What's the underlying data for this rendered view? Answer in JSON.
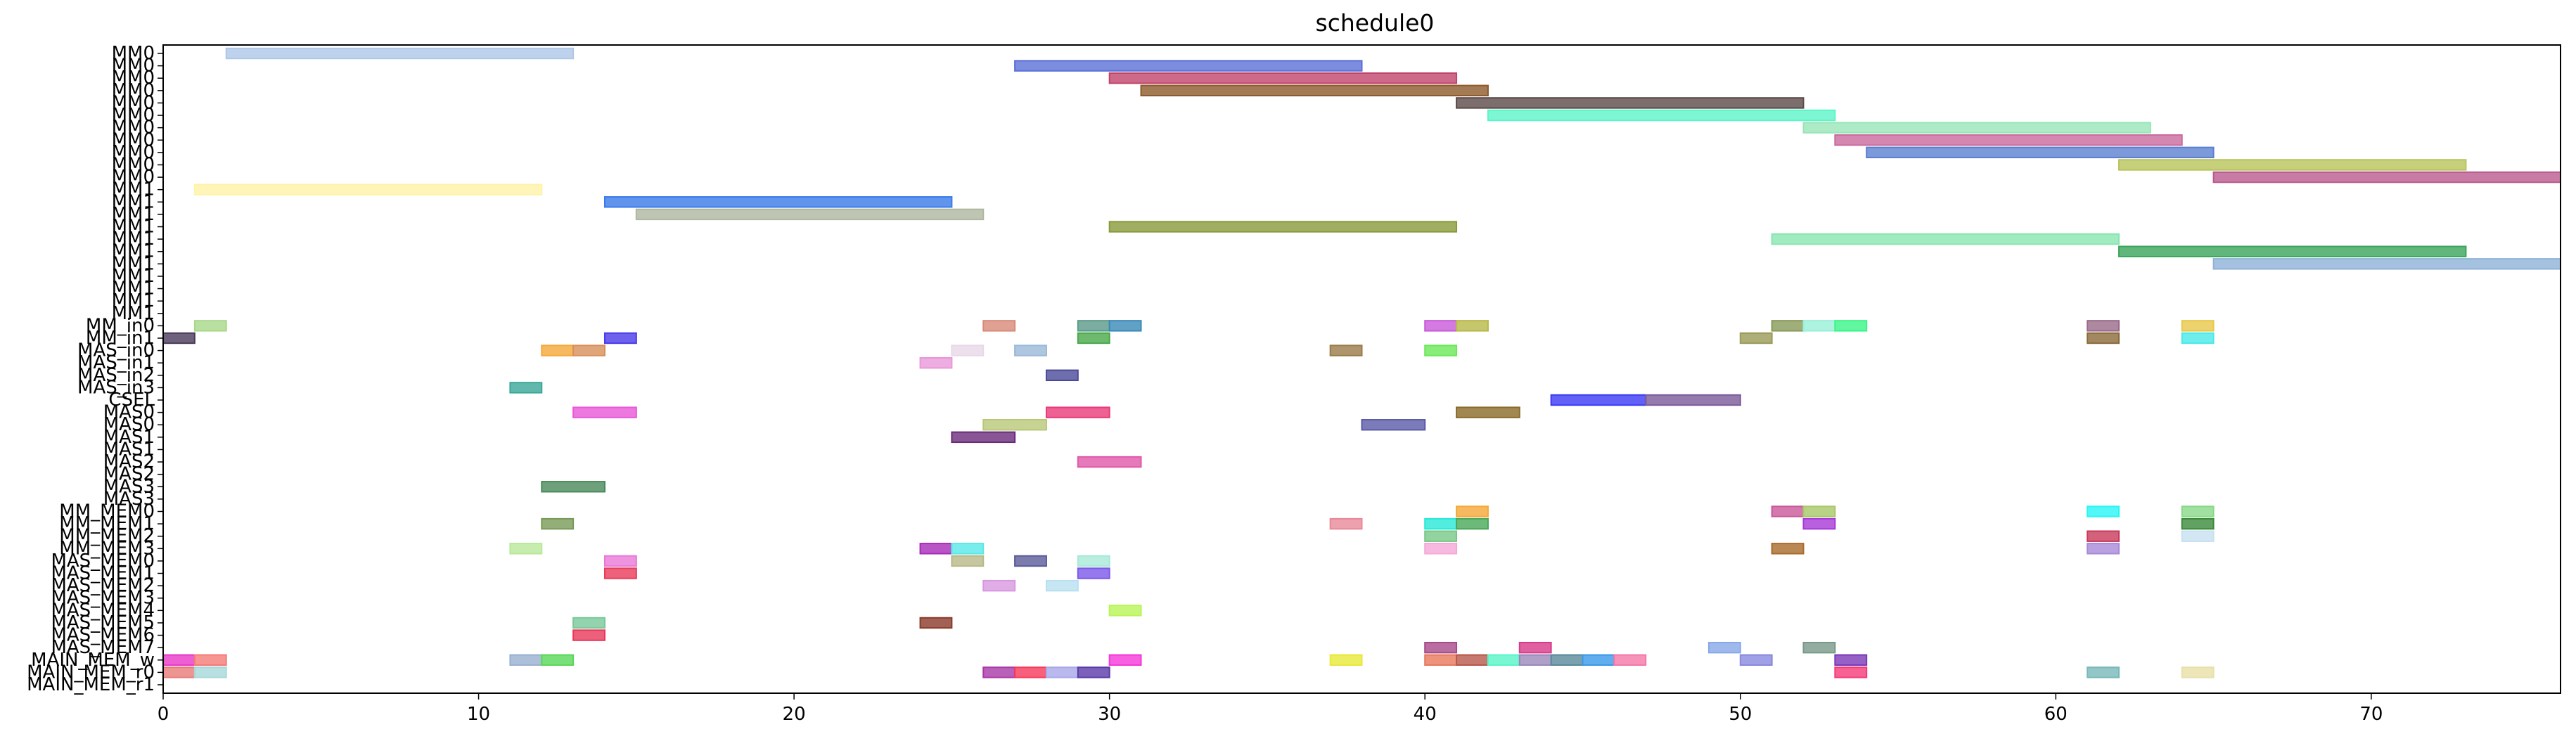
{
  "chart_data": {
    "type": "gantt",
    "title": "schedule0",
    "xlabel": "",
    "ylabel": "",
    "xlim": [
      0,
      76
    ],
    "xticks": [
      0,
      10,
      20,
      30,
      40,
      50,
      60,
      70
    ],
    "grid": false,
    "rows": [
      "MM0",
      "MM0",
      "MM0",
      "MM0",
      "MM0",
      "MM0",
      "MM0",
      "MM0",
      "MM0",
      "MM0",
      "MM0",
      "MM1",
      "MM1",
      "MM1",
      "MM1",
      "MM1",
      "MM1",
      "MM1",
      "MM1",
      "MM1",
      "MM1",
      "MM1",
      "MM_in0",
      "MM_in1",
      "MAS_in0",
      "MAS_in1",
      "MAS_in2",
      "MAS_in3",
      "CSEL",
      "MAS0",
      "MAS0",
      "MAS1",
      "MAS1",
      "MAS2",
      "MAS2",
      "MAS3",
      "MAS3",
      "MM_MEM0",
      "MM_MEM1",
      "MM_MEM2",
      "MM_MEM3",
      "MAS_MEM0",
      "MAS_MEM1",
      "MAS_MEM2",
      "MAS_MEM3",
      "MAS_MEM4",
      "MAS_MEM5",
      "MAS_MEM6",
      "MAS_MEM7",
      "MAIN_MEM_w",
      "MAIN_MEM_r0",
      "MAIN_MEM_r1"
    ],
    "tasks": [
      {
        "row": 0,
        "start": 2,
        "end": 13,
        "color": "#aec7e8"
      },
      {
        "row": 1,
        "start": 27,
        "end": 38,
        "color": "#5b6fd6"
      },
      {
        "row": 2,
        "start": 30,
        "end": 41,
        "color": "#c0436b"
      },
      {
        "row": 3,
        "start": 31,
        "end": 42,
        "color": "#8c5a2b"
      },
      {
        "row": 4,
        "start": 41,
        "end": 52,
        "color": "#5a4a48"
      },
      {
        "row": 5,
        "start": 42,
        "end": 53,
        "color": "#5cf5c8"
      },
      {
        "row": 6,
        "start": 52,
        "end": 63,
        "color": "#98e6b8"
      },
      {
        "row": 7,
        "start": 53,
        "end": 64,
        "color": "#c96a9d"
      },
      {
        "row": 8,
        "start": 54,
        "end": 65,
        "color": "#5b7fd0"
      },
      {
        "row": 9,
        "start": 62,
        "end": 73,
        "color": "#b8c45a"
      },
      {
        "row": 10,
        "start": 65,
        "end": 76,
        "color": "#b95a8e"
      },
      {
        "row": 11,
        "start": 1,
        "end": 12,
        "color": "#fff3a8"
      },
      {
        "row": 12,
        "start": 14,
        "end": 25,
        "color": "#3a7ae8"
      },
      {
        "row": 13,
        "start": 15,
        "end": 26,
        "color": "#aeb8a0"
      },
      {
        "row": 14,
        "start": 30,
        "end": 41,
        "color": "#889a3a"
      },
      {
        "row": 15,
        "start": 51,
        "end": 62,
        "color": "#88e6b0"
      },
      {
        "row": 16,
        "start": 62,
        "end": 73,
        "color": "#3aa55a"
      },
      {
        "row": 17,
        "start": 65,
        "end": 76,
        "color": "#8fb2d8"
      },
      {
        "row": 22,
        "start": 1,
        "end": 2,
        "color": "#a8d888"
      },
      {
        "row": 22,
        "start": 26,
        "end": 27,
        "color": "#d88a78"
      },
      {
        "row": 22,
        "start": 29,
        "end": 30,
        "color": "#5a9a88"
      },
      {
        "row": 22,
        "start": 30,
        "end": 31,
        "color": "#3a8ab8"
      },
      {
        "row": 22,
        "start": 40,
        "end": 41,
        "color": "#c85ad8"
      },
      {
        "row": 22,
        "start": 41,
        "end": 42,
        "color": "#b8b848"
      },
      {
        "row": 22,
        "start": 51,
        "end": 52,
        "color": "#889a58"
      },
      {
        "row": 22,
        "start": 52,
        "end": 53,
        "color": "#98f0d8"
      },
      {
        "row": 22,
        "start": 53,
        "end": 54,
        "color": "#3af588"
      },
      {
        "row": 22,
        "start": 61,
        "end": 62,
        "color": "#9a6a88"
      },
      {
        "row": 22,
        "start": 64,
        "end": 65,
        "color": "#e8c848"
      },
      {
        "row": 23,
        "start": 0,
        "end": 1,
        "color": "#4a3a5a"
      },
      {
        "row": 23,
        "start": 14,
        "end": 15,
        "color": "#4a3ae8"
      },
      {
        "row": 23,
        "start": 29,
        "end": 30,
        "color": "#48a848"
      },
      {
        "row": 23,
        "start": 50,
        "end": 51,
        "color": "#9a9a58"
      },
      {
        "row": 23,
        "start": 61,
        "end": 62,
        "color": "#8a6a3a"
      },
      {
        "row": 23,
        "start": 64,
        "end": 65,
        "color": "#4ae8e8"
      },
      {
        "row": 24,
        "start": 12,
        "end": 13,
        "color": "#f5a838"
      },
      {
        "row": 24,
        "start": 13,
        "end": 14,
        "color": "#d8905a"
      },
      {
        "row": 24,
        "start": 25,
        "end": 26,
        "color": "#e8d8e8"
      },
      {
        "row": 24,
        "start": 27,
        "end": 28,
        "color": "#9ab8d8"
      },
      {
        "row": 24,
        "start": 37,
        "end": 38,
        "color": "#9a7a48"
      },
      {
        "row": 24,
        "start": 40,
        "end": 41,
        "color": "#6ae858"
      },
      {
        "row": 25,
        "start": 24,
        "end": 25,
        "color": "#e898d8"
      },
      {
        "row": 26,
        "start": 28,
        "end": 29,
        "color": "#4a4a9a"
      },
      {
        "row": 27,
        "start": 11,
        "end": 12,
        "color": "#3aa898"
      },
      {
        "row": 28,
        "start": 44,
        "end": 47,
        "color": "#3a3af5"
      },
      {
        "row": 28,
        "start": 47,
        "end": 50,
        "color": "#7a5a98"
      },
      {
        "row": 29,
        "start": 13,
        "end": 15,
        "color": "#e858d8"
      },
      {
        "row": 29,
        "start": 28,
        "end": 30,
        "color": "#e83a78"
      },
      {
        "row": 29,
        "start": 41,
        "end": 43,
        "color": "#8a6a28"
      },
      {
        "row": 30,
        "start": 26,
        "end": 28,
        "color": "#b8c878"
      },
      {
        "row": 30,
        "start": 38,
        "end": 40,
        "color": "#5a5aa8"
      },
      {
        "row": 31,
        "start": 25,
        "end": 27,
        "color": "#6a2a7a"
      },
      {
        "row": 33,
        "start": 29,
        "end": 31,
        "color": "#e058a8"
      },
      {
        "row": 35,
        "start": 12,
        "end": 14,
        "color": "#4a8a5a"
      },
      {
        "row": 37,
        "start": 41,
        "end": 42,
        "color": "#f5a838"
      },
      {
        "row": 37,
        "start": 51,
        "end": 52,
        "color": "#c8589a"
      },
      {
        "row": 37,
        "start": 52,
        "end": 53,
        "color": "#a8c868"
      },
      {
        "row": 37,
        "start": 61,
        "end": 62,
        "color": "#28f5f5"
      },
      {
        "row": 37,
        "start": 64,
        "end": 65,
        "color": "#88d888"
      },
      {
        "row": 38,
        "start": 12,
        "end": 13,
        "color": "#789a58"
      },
      {
        "row": 38,
        "start": 37,
        "end": 38,
        "color": "#e88898"
      },
      {
        "row": 38,
        "start": 40,
        "end": 41,
        "color": "#28e8d8"
      },
      {
        "row": 38,
        "start": 41,
        "end": 42,
        "color": "#48a858"
      },
      {
        "row": 38,
        "start": 52,
        "end": 53,
        "color": "#a838d8"
      },
      {
        "row": 38,
        "start": 64,
        "end": 65,
        "color": "#3a8a3a"
      },
      {
        "row": 39,
        "start": 40,
        "end": 41,
        "color": "#78c888"
      },
      {
        "row": 39,
        "start": 61,
        "end": 62,
        "color": "#c83a5a"
      },
      {
        "row": 39,
        "start": 64,
        "end": 65,
        "color": "#c8e0f0"
      },
      {
        "row": 40,
        "start": 11,
        "end": 12,
        "color": "#b8e898"
      },
      {
        "row": 40,
        "start": 24,
        "end": 25,
        "color": "#a82ab8"
      },
      {
        "row": 40,
        "start": 25,
        "end": 26,
        "color": "#58e8e8"
      },
      {
        "row": 40,
        "start": 40,
        "end": 41,
        "color": "#f5a8d8"
      },
      {
        "row": 40,
        "start": 51,
        "end": 52,
        "color": "#a86a2a"
      },
      {
        "row": 40,
        "start": 61,
        "end": 62,
        "color": "#a888d8"
      },
      {
        "row": 41,
        "start": 14,
        "end": 15,
        "color": "#e878d8"
      },
      {
        "row": 41,
        "start": 25,
        "end": 26,
        "color": "#b8b888"
      },
      {
        "row": 41,
        "start": 27,
        "end": 28,
        "color": "#5a5a9a"
      },
      {
        "row": 41,
        "start": 29,
        "end": 30,
        "color": "#a8e8d8"
      },
      {
        "row": 42,
        "start": 14,
        "end": 15,
        "color": "#e83a5a"
      },
      {
        "row": 42,
        "start": 29,
        "end": 30,
        "color": "#7a58e8"
      },
      {
        "row": 43,
        "start": 26,
        "end": 27,
        "color": "#d898e0"
      },
      {
        "row": 43,
        "start": 28,
        "end": 29,
        "color": "#b8e0f0"
      },
      {
        "row": 45,
        "start": 30,
        "end": 31,
        "color": "#b8f558"
      },
      {
        "row": 46,
        "start": 13,
        "end": 14,
        "color": "#78c898"
      },
      {
        "row": 46,
        "start": 24,
        "end": 25,
        "color": "#8a3a2a"
      },
      {
        "row": 47,
        "start": 13,
        "end": 14,
        "color": "#e8385a"
      },
      {
        "row": 48,
        "start": 40,
        "end": 41,
        "color": "#a8488a"
      },
      {
        "row": 48,
        "start": 43,
        "end": 44,
        "color": "#d83a8a"
      },
      {
        "row": 48,
        "start": 49,
        "end": 50,
        "color": "#88a8e8"
      },
      {
        "row": 48,
        "start": 52,
        "end": 53,
        "color": "#789a88"
      },
      {
        "row": 49,
        "start": 0,
        "end": 1,
        "color": "#e838c8"
      },
      {
        "row": 49,
        "start": 1,
        "end": 2,
        "color": "#f57a78"
      },
      {
        "row": 49,
        "start": 11,
        "end": 12,
        "color": "#98b0d0"
      },
      {
        "row": 49,
        "start": 12,
        "end": 13,
        "color": "#58d858"
      },
      {
        "row": 49,
        "start": 30,
        "end": 31,
        "color": "#f538d8"
      },
      {
        "row": 49,
        "start": 37,
        "end": 38,
        "color": "#e8e838"
      },
      {
        "row": 49,
        "start": 40,
        "end": 41,
        "color": "#e8785a"
      },
      {
        "row": 49,
        "start": 41,
        "end": 42,
        "color": "#b8584a"
      },
      {
        "row": 49,
        "start": 42,
        "end": 43,
        "color": "#58f5c8"
      },
      {
        "row": 49,
        "start": 43,
        "end": 44,
        "color": "#9a88b8"
      },
      {
        "row": 49,
        "start": 44,
        "end": 45,
        "color": "#5a8a9a"
      },
      {
        "row": 49,
        "start": 45,
        "end": 46,
        "color": "#3a98e8"
      },
      {
        "row": 49,
        "start": 46,
        "end": 47,
        "color": "#f578a8"
      },
      {
        "row": 49,
        "start": 50,
        "end": 51,
        "color": "#8888e0"
      },
      {
        "row": 49,
        "start": 53,
        "end": 54,
        "color": "#7a3ab8"
      },
      {
        "row": 50,
        "start": 0,
        "end": 1,
        "color": "#e87a78"
      },
      {
        "row": 50,
        "start": 1,
        "end": 2,
        "color": "#a8d8d8"
      },
      {
        "row": 50,
        "start": 26,
        "end": 27,
        "color": "#a838a8"
      },
      {
        "row": 50,
        "start": 27,
        "end": 28,
        "color": "#f53a5a"
      },
      {
        "row": 50,
        "start": 28,
        "end": 29,
        "color": "#a8a8e8"
      },
      {
        "row": 50,
        "start": 29,
        "end": 30,
        "color": "#5a3aa8"
      },
      {
        "row": 50,
        "start": 53,
        "end": 54,
        "color": "#f53a78"
      },
      {
        "row": 50,
        "start": 61,
        "end": 62,
        "color": "#78b8b8"
      },
      {
        "row": 50,
        "start": 64,
        "end": 65,
        "color": "#e8e0a8"
      }
    ]
  }
}
